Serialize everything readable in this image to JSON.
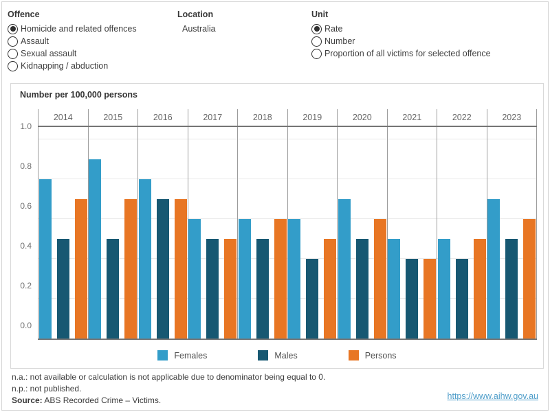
{
  "controls": {
    "offence": {
      "label": "Offence",
      "options": [
        {
          "label": "Homicide and related offences",
          "selected": true
        },
        {
          "label": "Assault",
          "selected": false
        },
        {
          "label": "Sexual assault",
          "selected": false
        },
        {
          "label": "Kidnapping / abduction",
          "selected": false
        }
      ]
    },
    "location": {
      "label": "Location",
      "value": "Australia"
    },
    "unit": {
      "label": "Unit",
      "options": [
        {
          "label": "Rate",
          "selected": true
        },
        {
          "label": "Number",
          "selected": false
        },
        {
          "label": "Proportion of all victims for selected offence",
          "selected": false
        }
      ]
    }
  },
  "chart_data": {
    "type": "bar",
    "title": "Number per 100,000 persons",
    "ylabel": "Number per 100,000 persons",
    "categories": [
      "2014",
      "2015",
      "2016",
      "2017",
      "2018",
      "2019",
      "2020",
      "2021",
      "2022",
      "2023"
    ],
    "series": [
      {
        "name": "Females",
        "color": "#339dc9",
        "values": [
          0.8,
          0.9,
          0.8,
          0.6,
          0.6,
          0.6,
          0.7,
          0.5,
          0.5,
          0.7
        ]
      },
      {
        "name": "Males",
        "color": "#175872",
        "values": [
          0.5,
          0.5,
          0.7,
          0.5,
          0.5,
          0.4,
          0.5,
          0.4,
          0.4,
          0.5
        ]
      },
      {
        "name": "Persons",
        "color": "#e87624",
        "values": [
          0.7,
          0.7,
          0.7,
          0.5,
          0.6,
          0.5,
          0.6,
          0.4,
          0.5,
          0.6
        ]
      }
    ],
    "ylim": [
      0,
      1.0
    ],
    "yticks": [
      0.0,
      0.2,
      0.4,
      0.6,
      0.8,
      1.0
    ],
    "grid": true,
    "legend_position": "bottom"
  },
  "notes": {
    "na": "n.a.: not available or calculation is not applicable due to denominator being equal to 0.",
    "np": "n.p.: not published.",
    "source_label": "Source:",
    "source_text": " ABS Recorded Crime – Victims."
  },
  "footer_link": "https://www.aihw.gov.au"
}
